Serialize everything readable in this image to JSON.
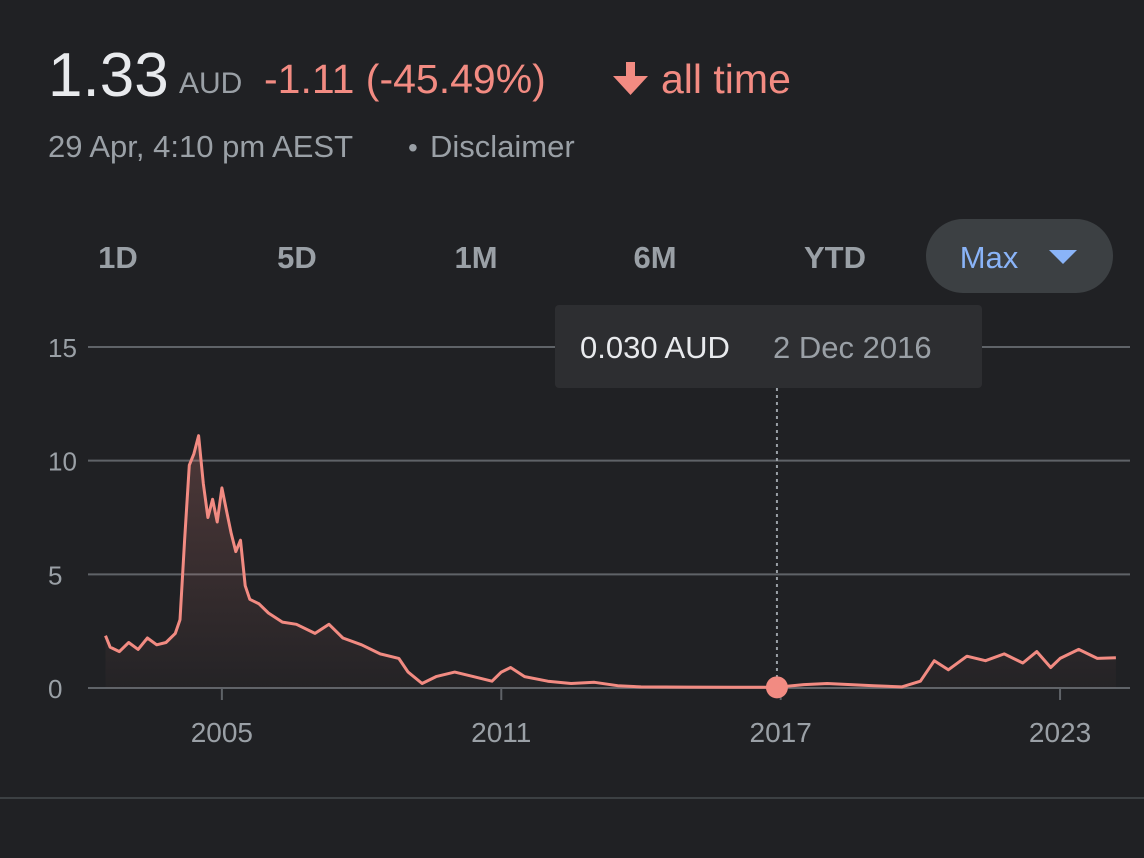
{
  "header": {
    "price": "1.33",
    "currency": "AUD",
    "change": "-1.11 (-45.49%)",
    "period": "all time",
    "timestamp": "29 Apr, 4:10 pm AEST",
    "separator": "•",
    "disclaimer": "Disclaimer"
  },
  "ranges": [
    "1D",
    "5D",
    "1M",
    "6M",
    "YTD",
    "Max"
  ],
  "chart_data": {
    "type": "line",
    "x": [
      2002.5,
      2002.6,
      2002.8,
      2003.0,
      2003.2,
      2003.4,
      2003.6,
      2003.8,
      2004.0,
      2004.1,
      2004.2,
      2004.3,
      2004.4,
      2004.5,
      2004.6,
      2004.7,
      2004.8,
      2004.9,
      2005.0,
      2005.1,
      2005.2,
      2005.3,
      2005.4,
      2005.5,
      2005.6,
      2005.8,
      2006.0,
      2006.3,
      2006.6,
      2007.0,
      2007.3,
      2007.6,
      2008.0,
      2008.4,
      2008.8,
      2009.0,
      2009.3,
      2009.6,
      2010.0,
      2010.4,
      2010.8,
      2011.0,
      2011.2,
      2011.5,
      2012.0,
      2012.5,
      2013.0,
      2013.5,
      2014.0,
      2015.0,
      2016.0,
      2016.92,
      2017.5,
      2018.0,
      2019.0,
      2019.6,
      2020.0,
      2020.3,
      2020.6,
      2021.0,
      2021.4,
      2021.8,
      2022.2,
      2022.5,
      2022.8,
      2023.0,
      2023.4,
      2023.8,
      2024.2
    ],
    "series": [
      {
        "color": "#f28b82",
        "values": [
          2.3,
          1.8,
          1.6,
          2.0,
          1.7,
          2.2,
          1.9,
          2.0,
          2.4,
          3.0,
          6.5,
          9.8,
          10.3,
          11.1,
          9.0,
          7.5,
          8.3,
          7.3,
          8.8,
          7.8,
          6.8,
          6.0,
          6.5,
          4.5,
          3.9,
          3.7,
          3.3,
          2.9,
          2.8,
          2.4,
          2.8,
          2.2,
          1.9,
          1.5,
          1.3,
          0.7,
          0.2,
          0.5,
          0.7,
          0.5,
          0.3,
          0.7,
          0.9,
          0.5,
          0.3,
          0.2,
          0.25,
          0.1,
          0.05,
          0.04,
          0.03,
          0.03,
          0.15,
          0.2,
          0.1,
          0.05,
          0.3,
          1.2,
          0.8,
          1.4,
          1.2,
          1.5,
          1.1,
          1.6,
          0.9,
          1.3,
          1.7,
          1.3,
          1.33
        ]
      }
    ],
    "xlim": [
      2002.49,
      2024.18
    ],
    "xticks": [
      2005,
      2011,
      2017,
      2023
    ],
    "ylim": [
      0,
      15
    ],
    "yticks": [
      0,
      5,
      10,
      15
    ],
    "grid": true,
    "tooltip": {
      "x": 2016.92,
      "value": 0.03,
      "value_label": "0.030 AUD",
      "x_label": "2 Dec 2016"
    }
  }
}
